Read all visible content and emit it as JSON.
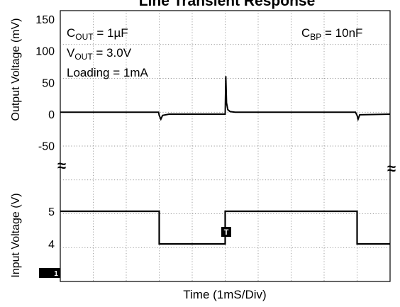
{
  "chart_data": {
    "type": "line",
    "title": "Line Transient Response",
    "xlabel": "Time (1mS/Div)",
    "x_range_ms": [
      0,
      10
    ],
    "grid": true,
    "annotations": {
      "cout_main": "C",
      "cout_sub": "OUT",
      "cout_val": " = 1µF",
      "vout_main": "V",
      "vout_sub": "OUT",
      "vout_val": " = 3.0V",
      "loading": "Loading = 1mA",
      "cbp_main": "C",
      "cbp_sub": "BP",
      "cbp_val": " = 10nF",
      "trigger_marker": "T",
      "channel_marker": "1"
    },
    "upper_panel": {
      "ylabel": "Output Voltage  (mV)",
      "ylim": [
        -70,
        150
      ],
      "y_ticks": [
        "150",
        "100",
        "50",
        "0",
        "-50"
      ],
      "y_tick_values": [
        150,
        100,
        50,
        0,
        -50
      ],
      "break_symbol": "≈",
      "series": [
        {
          "x": [
            0,
            2.98,
            3.0,
            3.05,
            3.1,
            3.3,
            4.9,
            5.0,
            5.02,
            5.04,
            5.08,
            5.15,
            5.3,
            5.6,
            6.0,
            6.5,
            8.95,
            9.0,
            9.03,
            9.08,
            10
          ],
          "y": [
            3,
            3,
            -2,
            -8,
            -2,
            0,
            0,
            0,
            60,
            18,
            7,
            4,
            3,
            3,
            3,
            3,
            3,
            -2,
            -8,
            -1,
            0
          ]
        }
      ]
    },
    "lower_panel": {
      "ylabel": "Input Voltage (V)",
      "ylim": [
        3.3,
        6.6
      ],
      "y_ticks": [
        "5",
        "4"
      ],
      "y_tick_values": [
        5,
        4
      ],
      "series": [
        {
          "x": [
            0,
            3.0,
            3.0,
            5.0,
            5.0,
            9.0,
            9.0,
            10
          ],
          "y": [
            5,
            5,
            4,
            4,
            5,
            5,
            4,
            4
          ]
        }
      ]
    }
  }
}
